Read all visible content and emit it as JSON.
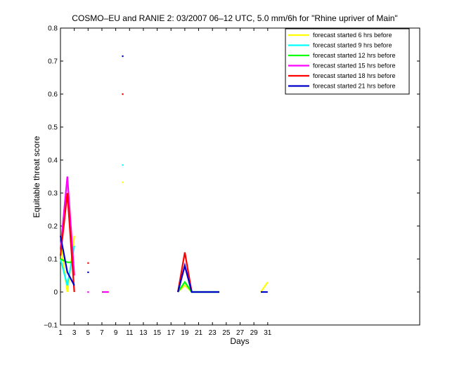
{
  "chart_data": {
    "type": "line",
    "title": "COSMO–EU and RANIE 2: 03/2007 06–12 UTC, 5.0 mm/6h for \"Rhine upriver of Main\"",
    "xlabel": "Days",
    "ylabel": "Equitable threat score",
    "xlim": [
      1,
      53
    ],
    "ylim": [
      -0.1,
      0.8
    ],
    "xticks": [
      1,
      3,
      5,
      7,
      9,
      11,
      13,
      15,
      17,
      19,
      21,
      23,
      25,
      27,
      29,
      31
    ],
    "yticks": [
      -0.1,
      0,
      0.1,
      0.2,
      0.3,
      0.4,
      0.5,
      0.6,
      0.7,
      0.8
    ],
    "ytick_labels": [
      "−0.1",
      "0",
      "0.1",
      "0.2",
      "0.3",
      "0.4",
      "0.5",
      "0.6",
      "0.7",
      "0.8"
    ],
    "grid": false,
    "legend_position": "top-right",
    "series": [
      {
        "name": "forecast started 6 hrs before",
        "color": "#ffff00",
        "segments": [
          [
            [
              1,
              0.15
            ],
            [
              2,
              0.0
            ],
            [
              3,
              0.17
            ]
          ],
          [
            [
              7,
              0.0
            ],
            [
              8,
              0.0
            ]
          ],
          [
            [
              18,
              0.0
            ],
            [
              19,
              0.02
            ],
            [
              20,
              0.0
            ],
            [
              21,
              0.0
            ],
            [
              22,
              0.0
            ],
            [
              23,
              0.0
            ],
            [
              24,
              0.0
            ]
          ],
          [
            [
              30,
              0.0
            ],
            [
              31,
              0.03
            ]
          ]
        ],
        "points": [
          [
            10,
            0.333
          ]
        ]
      },
      {
        "name": "forecast started 9 hrs before",
        "color": "#00ffff",
        "segments": [
          [
            [
              1,
              0.1
            ],
            [
              2,
              0.02
            ],
            [
              3,
              0.14
            ]
          ],
          [
            [
              18,
              0.0
            ],
            [
              19,
              0.03
            ],
            [
              20,
              0.0
            ],
            [
              21,
              0.0
            ],
            [
              22,
              0.0
            ],
            [
              23,
              0.0
            ],
            [
              24,
              0.0
            ]
          ]
        ],
        "points": [
          [
            10,
            0.385
          ]
        ]
      },
      {
        "name": "forecast started 12 hrs before",
        "color": "#00ff00",
        "segments": [
          [
            [
              1,
              0.1
            ],
            [
              2,
              0.09
            ],
            [
              3,
              0.09
            ]
          ],
          [
            [
              18,
              0.0
            ],
            [
              19,
              0.03
            ],
            [
              20,
              0.0
            ],
            [
              21,
              0.0
            ],
            [
              22,
              0.0
            ],
            [
              23,
              0.0
            ],
            [
              24,
              0.0
            ]
          ]
        ],
        "points": []
      },
      {
        "name": "forecast started 15 hrs before",
        "color": "#ff00ff",
        "segments": [
          [
            [
              1,
              0.13
            ],
            [
              2,
              0.35
            ],
            [
              3,
              0.05
            ]
          ],
          [
            [
              7,
              0.0
            ],
            [
              8,
              0.0
            ]
          ],
          [
            [
              18,
              0.0
            ],
            [
              19,
              0.08
            ],
            [
              20,
              0.0
            ]
          ]
        ],
        "points": [
          [
            5,
            0.0
          ]
        ]
      },
      {
        "name": "forecast started 18 hrs before",
        "color": "#ff0000",
        "segments": [
          [
            [
              1,
              0.11
            ],
            [
              2,
              0.3
            ],
            [
              3,
              0.0
            ]
          ],
          [
            [
              18,
              0.0
            ],
            [
              19,
              0.12
            ],
            [
              20,
              0.0
            ]
          ]
        ],
        "points": [
          [
            5,
            0.088
          ],
          [
            10,
            0.6
          ]
        ]
      },
      {
        "name": "forecast started 21 hrs before",
        "color": "#0000cc",
        "segments": [
          [
            [
              1,
              0.17
            ],
            [
              2,
              0.06
            ],
            [
              3,
              0.02
            ]
          ],
          [
            [
              18,
              0.0
            ],
            [
              19,
              0.08
            ],
            [
              20,
              0.0
            ],
            [
              21,
              0.0
            ],
            [
              22,
              0.0
            ],
            [
              23,
              0.0
            ],
            [
              24,
              0.0
            ]
          ],
          [
            [
              30,
              0.0
            ],
            [
              31,
              0.0
            ]
          ]
        ],
        "points": [
          [
            5,
            0.06
          ],
          [
            10,
            0.715
          ]
        ]
      }
    ]
  }
}
